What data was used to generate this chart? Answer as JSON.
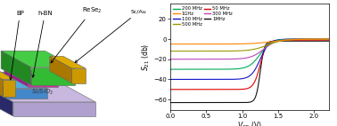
{
  "fig_width": 3.78,
  "fig_height": 1.42,
  "dpi": 100,
  "frequencies": [
    "1MHz",
    "50 MHz",
    "100 MHz",
    "200 MHz",
    "300 MHz",
    "500 MHz",
    "1GHz"
  ],
  "freq_colors": [
    "#111111",
    "#dd0000",
    "#1111cc",
    "#00aa55",
    "#bb44bb",
    "#999900",
    "#ff8800"
  ],
  "legend_order": [
    "200 MHz",
    "1GHz",
    "100 MHz",
    "500 MHz",
    "50 MHz",
    "300 MHz",
    "1MHz"
  ],
  "legend_colors": [
    "#00aa55",
    "#ff8800",
    "#1111cc",
    "#999900",
    "#dd0000",
    "#bb44bb",
    "#111111"
  ],
  "xlim": [
    0.0,
    2.2
  ],
  "ylim": [
    -70,
    35
  ],
  "xticks": [
    0.0,
    0.5,
    1.0,
    1.5,
    2.0
  ],
  "yticks": [
    -60,
    -40,
    -20,
    0,
    20
  ],
  "s21_flat_values": [
    -63,
    -50,
    -40,
    -30,
    -20,
    -12,
    -5
  ],
  "s21_top_values": [
    -2,
    -1,
    0,
    0,
    0,
    0,
    0
  ],
  "s21_transition_center": [
    1.25,
    1.25,
    1.25,
    1.25,
    1.3,
    1.35,
    1.42
  ],
  "s21_steepness": [
    35,
    22,
    16,
    13,
    11,
    9,
    7
  ],
  "substrate_color_top": "#c8b8e0",
  "substrate_color_left": "#2a2a6a",
  "substrate_color_front": "#b0a0d0",
  "bp_color_top": "#55aadd",
  "bp_color_left": "#1a3a8a",
  "bp_color_front": "#4488cc",
  "hbn_color": "#dd44bb",
  "rese2_color_top": "#44cc44",
  "rese2_color_left": "#228822",
  "rese2_color_front": "#33bb33",
  "gold_color_top": "#ddaa00",
  "gold_color_left": "#aa7700",
  "gold_color_front": "#cc9900"
}
